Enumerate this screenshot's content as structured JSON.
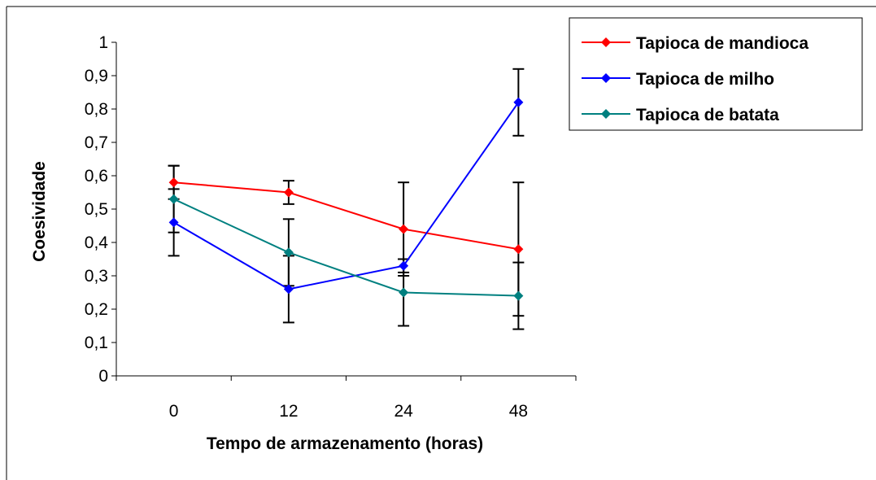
{
  "chart_data": {
    "type": "line",
    "categories": [
      "0",
      "12",
      "24",
      "48"
    ],
    "ylabel": "Coesividade",
    "xlabel": "Tempo de armazenamento (horas)",
    "ylim": [
      0,
      1
    ],
    "yticks": [
      "0",
      "0,1",
      "0,2",
      "0,3",
      "0,4",
      "0,5",
      "0,6",
      "0,7",
      "0,8",
      "0,9",
      "1"
    ],
    "grid": false,
    "legend_position": "top-right",
    "series": [
      {
        "name": "Tapioca de mandioca",
        "color": "#ff0000",
        "values": [
          0.58,
          0.55,
          0.44,
          0.38
        ],
        "error": [
          0.05,
          0.035,
          0.14,
          0.2
        ]
      },
      {
        "name": "Tapioca de milho",
        "color": "#0000ff",
        "values": [
          0.46,
          0.26,
          0.33,
          0.82
        ],
        "error": [
          0.1,
          0.1,
          0.02,
          0.1
        ]
      },
      {
        "name": "Tapioca de batata",
        "color": "#008080",
        "values": [
          0.53,
          0.37,
          0.25,
          0.24
        ],
        "error": [
          0.1,
          0.1,
          0.1,
          0.1
        ]
      }
    ]
  }
}
